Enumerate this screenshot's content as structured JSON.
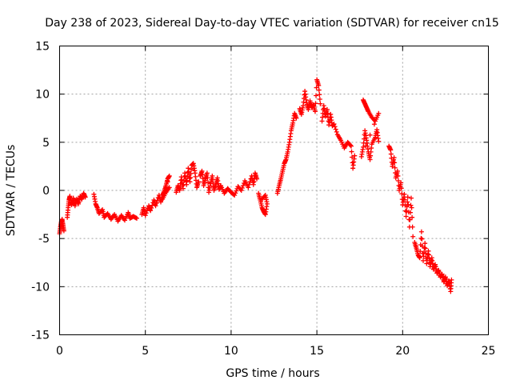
{
  "chart_data": {
    "type": "scatter",
    "title": "Day 238 of 2023, Sidereal Day-to-day VTEC variation (SDTVAR) for receiver cn15",
    "xlabel": "GPS time / hours",
    "ylabel": "SDTVAR / TECUs",
    "xlim": [
      0,
      25
    ],
    "ylim": [
      -15,
      15
    ],
    "xticks": [
      "0",
      "5",
      "10",
      "15",
      "20",
      "25"
    ],
    "yticks": [
      "15",
      "10",
      "5",
      "0",
      "-5",
      "-10",
      "-15"
    ],
    "grid": true,
    "marker": "plus",
    "color": "#ff0000",
    "series": [
      {
        "name": "cn15",
        "segments": [
          [
            [
              0.0,
              -4.5
            ],
            [
              0.05,
              -3.8
            ],
            [
              0.1,
              -3.3
            ],
            [
              0.15,
              -3.0
            ],
            [
              0.2,
              -3.6
            ],
            [
              0.25,
              -4.2
            ]
          ],
          [
            [
              0.45,
              -2.8
            ],
            [
              0.5,
              -1.8
            ],
            [
              0.55,
              -1.0
            ],
            [
              0.6,
              -0.6
            ],
            [
              0.7,
              -1.5
            ],
            [
              0.8,
              -0.8
            ],
            [
              0.9,
              -1.6
            ],
            [
              1.0,
              -0.9
            ],
            [
              1.1,
              -1.4
            ],
            [
              1.2,
              -0.6
            ],
            [
              1.3,
              -0.9
            ],
            [
              1.4,
              -0.3
            ],
            [
              1.5,
              -0.7
            ]
          ],
          [
            [
              2.0,
              -0.4
            ],
            [
              2.1,
              -1.4
            ],
            [
              2.2,
              -1.8
            ],
            [
              2.3,
              -2.4
            ],
            [
              2.5,
              -2.0
            ],
            [
              2.6,
              -2.8
            ],
            [
              2.8,
              -2.4
            ],
            [
              3.0,
              -3.0
            ],
            [
              3.2,
              -2.5
            ],
            [
              3.4,
              -3.2
            ],
            [
              3.6,
              -2.6
            ],
            [
              3.8,
              -3.1
            ],
            [
              4.0,
              -2.3
            ],
            [
              4.1,
              -2.9
            ],
            [
              4.3,
              -2.7
            ],
            [
              4.5,
              -2.9
            ]
          ],
          [
            [
              4.8,
              -2.5
            ],
            [
              4.9,
              -1.8
            ],
            [
              5.0,
              -2.6
            ],
            [
              5.2,
              -1.6
            ],
            [
              5.3,
              -2.1
            ],
            [
              5.5,
              -1.0
            ],
            [
              5.6,
              -1.6
            ],
            [
              5.8,
              -0.5
            ],
            [
              5.9,
              -1.2
            ],
            [
              6.0,
              -0.5
            ],
            [
              6.1,
              -0.1
            ],
            [
              6.2,
              0.5
            ],
            [
              6.3,
              1.2
            ],
            [
              6.4,
              1.5
            ],
            [
              6.0,
              -0.9
            ],
            [
              6.2,
              -0.2
            ],
            [
              6.4,
              0.3
            ]
          ],
          [
            [
              6.8,
              -0.2
            ],
            [
              6.9,
              0.5
            ],
            [
              7.0,
              0.0
            ],
            [
              7.1,
              1.4
            ],
            [
              7.2,
              0.2
            ],
            [
              7.3,
              1.8
            ],
            [
              7.4,
              0.6
            ],
            [
              7.5,
              2.3
            ],
            [
              7.6,
              0.9
            ],
            [
              7.7,
              2.6
            ],
            [
              7.8,
              2.8
            ],
            [
              7.9,
              1.8
            ],
            [
              8.0,
              0.3
            ],
            [
              8.1,
              0.9
            ]
          ],
          [
            [
              8.2,
              1.5
            ],
            [
              8.3,
              2.0
            ],
            [
              8.4,
              0.5
            ],
            [
              8.5,
              1.2
            ],
            [
              8.6,
              1.8
            ],
            [
              8.7,
              -0.2
            ],
            [
              8.8,
              0.7
            ],
            [
              8.9,
              1.5
            ],
            [
              9.0,
              0.0
            ],
            [
              9.1,
              0.6
            ],
            [
              9.2,
              1.3
            ],
            [
              9.3,
              0.1
            ],
            [
              9.4,
              0.5
            ],
            [
              9.6,
              -0.3
            ],
            [
              9.8,
              0.2
            ],
            [
              10.0,
              -0.2
            ],
            [
              10.2,
              -0.5
            ],
            [
              10.4,
              0.4
            ],
            [
              10.6,
              0.0
            ],
            [
              10.8,
              1.0
            ],
            [
              11.0,
              0.3
            ],
            [
              11.2,
              1.5
            ],
            [
              11.3,
              0.6
            ],
            [
              11.4,
              1.8
            ],
            [
              11.5,
              1.2
            ]
          ],
          [
            [
              11.6,
              -0.3
            ],
            [
              11.7,
              -1.0
            ],
            [
              11.8,
              -1.8
            ],
            [
              11.9,
              -2.2
            ],
            [
              12.0,
              -2.5
            ],
            [
              12.1,
              -1.4
            ],
            [
              12.0,
              -0.5
            ],
            [
              11.8,
              -0.9
            ]
          ],
          [
            [
              12.7,
              -0.3
            ],
            [
              12.8,
              0.5
            ],
            [
              12.9,
              1.2
            ],
            [
              13.0,
              2.0
            ],
            [
              13.1,
              2.8
            ],
            [
              13.2,
              3.2
            ],
            [
              13.3,
              4.0
            ],
            [
              13.4,
              5.0
            ],
            [
              13.5,
              6.2
            ],
            [
              13.6,
              7.0
            ],
            [
              13.7,
              8.0
            ],
            [
              13.8,
              7.5
            ]
          ],
          [
            [
              14.0,
              8.5
            ],
            [
              14.1,
              7.9
            ],
            [
              14.2,
              8.8
            ],
            [
              14.3,
              10.3
            ],
            [
              14.4,
              9.1
            ],
            [
              14.5,
              8.4
            ],
            [
              14.6,
              9.3
            ],
            [
              14.7,
              8.6
            ],
            [
              14.8,
              8.9
            ],
            [
              14.9,
              8.2
            ],
            [
              15.0,
              11.5
            ],
            [
              15.1,
              10.9
            ],
            [
              15.2,
              9.0
            ]
          ],
          [
            [
              15.3,
              7.2
            ],
            [
              15.4,
              8.8
            ],
            [
              15.5,
              7.7
            ],
            [
              15.6,
              8.4
            ],
            [
              15.7,
              6.8
            ],
            [
              15.8,
              7.9
            ],
            [
              15.9,
              6.7
            ],
            [
              16.0,
              6.9
            ],
            [
              16.2,
              5.8
            ],
            [
              16.4,
              5.2
            ],
            [
              16.6,
              4.4
            ],
            [
              16.8,
              5.0
            ],
            [
              17.0,
              4.6
            ],
            [
              17.1,
              2.3
            ],
            [
              17.2,
              3.6
            ]
          ],
          [
            [
              17.7,
              9.4
            ],
            [
              17.8,
              9.0
            ],
            [
              17.9,
              8.6
            ],
            [
              18.0,
              8.2
            ],
            [
              18.2,
              7.6
            ],
            [
              18.4,
              7.2
            ],
            [
              18.6,
              8.0
            ],
            [
              17.6,
              3.5
            ],
            [
              17.7,
              4.5
            ],
            [
              17.8,
              6.2
            ],
            [
              17.9,
              5.2
            ],
            [
              18.0,
              4.0
            ],
            [
              18.1,
              3.2
            ],
            [
              18.2,
              4.8
            ],
            [
              18.4,
              5.5
            ],
            [
              18.5,
              6.3
            ],
            [
              18.6,
              5.1
            ]
          ],
          [
            [
              19.2,
              4.6
            ],
            [
              19.3,
              4.2
            ],
            [
              19.4,
              2.5
            ],
            [
              19.5,
              3.4
            ],
            [
              19.6,
              1.3
            ],
            [
              19.7,
              2.0
            ],
            [
              19.8,
              0.0
            ],
            [
              19.9,
              0.8
            ],
            [
              20.0,
              -1.5
            ],
            [
              20.1,
              -0.4
            ],
            [
              20.2,
              -2.7
            ],
            [
              20.3,
              -0.7
            ],
            [
              20.4,
              -3.8
            ],
            [
              20.5,
              -0.8
            ],
            [
              20.6,
              -4.8
            ]
          ],
          [
            [
              20.7,
              -5.4
            ],
            [
              20.8,
              -6.0
            ],
            [
              20.9,
              -6.7
            ],
            [
              21.0,
              -7.0
            ],
            [
              21.1,
              -4.3
            ],
            [
              21.2,
              -7.3
            ],
            [
              21.3,
              -5.5
            ],
            [
              21.4,
              -7.6
            ],
            [
              21.5,
              -6.3
            ],
            [
              21.6,
              -7.9
            ],
            [
              21.7,
              -7.0
            ],
            [
              21.8,
              -8.2
            ],
            [
              21.9,
              -7.7
            ],
            [
              22.0,
              -8.6
            ],
            [
              22.1,
              -8.3
            ],
            [
              22.2,
              -9.0
            ],
            [
              22.3,
              -8.7
            ],
            [
              22.4,
              -9.5
            ],
            [
              22.5,
              -9.0
            ],
            [
              22.6,
              -9.9
            ],
            [
              22.7,
              -9.4
            ],
            [
              22.8,
              -10.5
            ],
            [
              22.85,
              -9.3
            ]
          ]
        ]
      }
    ]
  }
}
